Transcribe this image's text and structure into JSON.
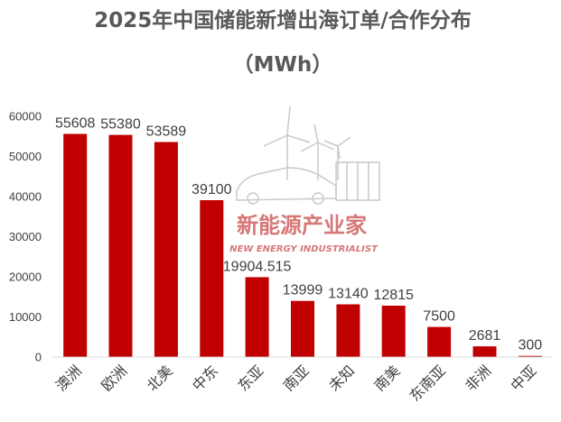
{
  "chart_data": {
    "type": "bar",
    "title": "2025年中国储能新增出海订单/合作分布",
    "subtitle": "（MWh）",
    "categories": [
      "澳洲",
      "欧洲",
      "北美",
      "中东",
      "东亚",
      "南亚",
      "未知",
      "南美",
      "东南亚",
      "非洲",
      "中亚"
    ],
    "values": [
      55608,
      55380,
      53589,
      39100,
      19904.515,
      13999,
      13140,
      12815,
      7500,
      2681,
      300
    ],
    "value_labels": [
      "55608",
      "55380",
      "53589",
      "39100",
      "19904.515",
      "13999",
      "13140",
      "12815",
      "7500",
      "2681",
      "300"
    ],
    "ylim": [
      0,
      60000
    ],
    "yticks": [
      0,
      10000,
      20000,
      30000,
      40000,
      50000,
      60000
    ],
    "xlabel": "",
    "ylabel": "",
    "grid": false,
    "legend": "none",
    "bar_color": "#c00000"
  },
  "watermark": {
    "text_cn": "新能源产业家",
    "text_en": "NEW ENERGY INDUSTRIALIST",
    "color": "#c84a4a"
  }
}
